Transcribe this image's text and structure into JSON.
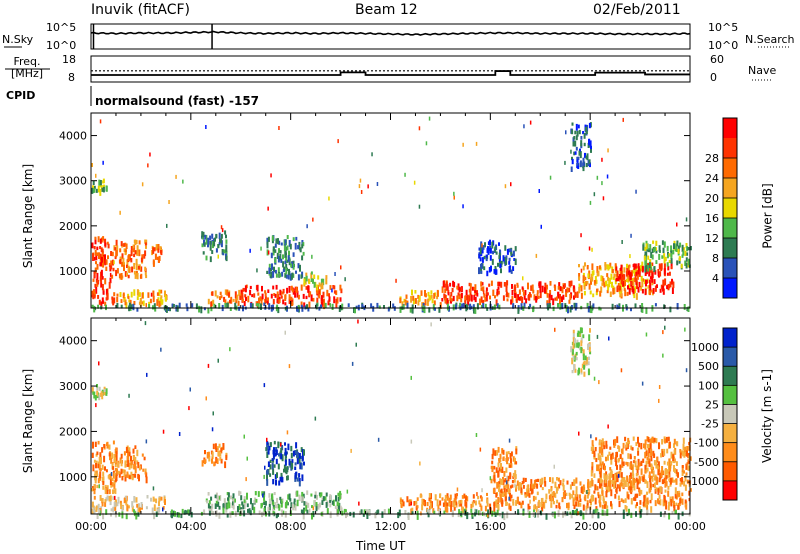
{
  "header": {
    "station": "Inuvik (fitACF)",
    "beam": "Beam 12",
    "date": "02/Feb/2011",
    "cpid_label": "CPID",
    "cpid_value": "normalsound (fast) -157"
  },
  "chart_data": [
    {
      "type": "line",
      "name": "nsky-nsearch",
      "ylabel": "N.Sky",
      "ylabel_right": "N.Search",
      "yticks_left": [
        "10^5",
        "10^0"
      ],
      "yticks_right": [
        "10^5",
        "10^0"
      ],
      "x_hours": [
        0,
        1,
        2,
        3,
        4,
        5,
        6,
        7,
        8,
        9,
        10,
        11,
        12,
        13,
        14,
        15,
        16,
        17,
        18,
        19,
        20,
        21,
        22,
        23,
        24
      ],
      "nsky_log": [
        3.2,
        3.1,
        3.2,
        3.2,
        3.3,
        3.4,
        3.2,
        3.1,
        3.2,
        3.1,
        3.2,
        3.1,
        3.0,
        2.9,
        3.0,
        3.1,
        3.2,
        3.2,
        3.1,
        3.1,
        3.1,
        3.0,
        3.0,
        3.0,
        3.1
      ],
      "spikes_hours": [
        0.1,
        4.85
      ]
    },
    {
      "type": "line",
      "name": "freq-nave",
      "ylabel": "Freq. [MHz]",
      "ylabel_right": "Nave",
      "yticks_left": [
        "18",
        "8"
      ],
      "yticks_right": [
        "60",
        "0"
      ],
      "ylim_freq": [
        8,
        18
      ],
      "freq_steps": [
        {
          "x0": 0,
          "x1": 10,
          "y": 10.7
        },
        {
          "x0": 10,
          "x1": 11,
          "y": 11.7
        },
        {
          "x0": 11,
          "x1": 14,
          "y": 10.7
        },
        {
          "x0": 14,
          "x1": 16.2,
          "y": 10.7
        },
        {
          "x0": 16.2,
          "x1": 16.8,
          "y": 12.2
        },
        {
          "x0": 16.8,
          "x1": 20.2,
          "y": 10.7
        },
        {
          "x0": 20.2,
          "x1": 22.2,
          "y": 11.6
        },
        {
          "x0": 22.2,
          "x1": 24,
          "y": 10.9
        }
      ],
      "nave_level": 12.3
    },
    {
      "type": "heatmap",
      "name": "power",
      "ylabel": "Slant Range [km]",
      "yticks": [
        "1000",
        "2000",
        "3000",
        "4000"
      ],
      "ylim": [
        180,
        4500
      ],
      "xlim": [
        0,
        24
      ],
      "colorbar": {
        "label": "Power [dB]",
        "ticks": [
          "4",
          "8",
          "12",
          "16",
          "20",
          "24",
          "28"
        ],
        "colors": [
          "#0018ff",
          "#2a52b8",
          "#2e7b52",
          "#4fb84a",
          "#e8d800",
          "#f5a520",
          "#ff6a00",
          "#ff3300",
          "#ff0000"
        ]
      },
      "regions": [
        {
          "h0": 0.0,
          "h1": 0.8,
          "r0": 700,
          "r1": 1800,
          "level": 7
        },
        {
          "h0": 0.0,
          "h1": 1.0,
          "r0": 300,
          "r1": 650,
          "level": 7
        },
        {
          "h0": 0.8,
          "h1": 2.2,
          "r0": 900,
          "r1": 1700,
          "level": 6
        },
        {
          "h0": 1.0,
          "h1": 3.0,
          "r0": 300,
          "r1": 600,
          "level": 5
        },
        {
          "h0": 2.4,
          "h1": 2.8,
          "r0": 1200,
          "r1": 1600,
          "level": 6
        },
        {
          "h0": 0.0,
          "h1": 0.6,
          "r0": 2800,
          "r1": 3050,
          "level": 3
        },
        {
          "h0": 4.4,
          "h1": 5.4,
          "r0": 1300,
          "r1": 1900,
          "level": 2
        },
        {
          "h0": 4.6,
          "h1": 6.0,
          "r0": 300,
          "r1": 600,
          "level": 6
        },
        {
          "h0": 6.0,
          "h1": 10.0,
          "r0": 300,
          "r1": 700,
          "level": 7
        },
        {
          "h0": 7.0,
          "h1": 8.5,
          "r0": 900,
          "r1": 1800,
          "level": 2
        },
        {
          "h0": 8.5,
          "h1": 9.5,
          "r0": 700,
          "r1": 1000,
          "level": 4
        },
        {
          "h0": 12.3,
          "h1": 14.0,
          "r0": 300,
          "r1": 600,
          "level": 5
        },
        {
          "h0": 14.0,
          "h1": 19.5,
          "r0": 350,
          "r1": 800,
          "level": 7
        },
        {
          "h0": 15.5,
          "h1": 17.0,
          "r0": 1000,
          "r1": 1700,
          "level": 1
        },
        {
          "h0": 19.5,
          "h1": 22.5,
          "r0": 500,
          "r1": 1200,
          "level": 5
        },
        {
          "h0": 21.0,
          "h1": 23.3,
          "r0": 600,
          "r1": 1200,
          "level": 8
        },
        {
          "h0": 22.0,
          "h1": 24.0,
          "r0": 1100,
          "r1": 1700,
          "level": 3
        },
        {
          "h0": 19.2,
          "h1": 20.0,
          "r0": 3300,
          "r1": 4300,
          "level": 1
        },
        {
          "h0": 0.0,
          "h1": 24.0,
          "r0": 190,
          "r1": 300,
          "level": 2
        }
      ]
    },
    {
      "type": "heatmap",
      "name": "velocity",
      "ylabel": "Slant Range [km]",
      "xlabel": "Time UT",
      "xticks": [
        "00:00",
        "04:00",
        "08:00",
        "12:00",
        "16:00",
        "20:00",
        "00:00"
      ],
      "yticks": [
        "1000",
        "2000",
        "3000",
        "4000"
      ],
      "ylim": [
        180,
        4500
      ],
      "xlim": [
        0,
        24
      ],
      "colorbar": {
        "label": "Velocity [m s-1]",
        "ticks": [
          "1000",
          "500",
          "100",
          "25",
          "-25",
          "-100",
          "-500",
          "-1000"
        ],
        "colors": [
          "#0022cc",
          "#2a5aa8",
          "#2e7b52",
          "#55c040",
          "#c8c8b8",
          "#f5b040",
          "#ff8c1a",
          "#ff5a00",
          "#ff0000"
        ]
      },
      "regions": [
        {
          "h0": 0.0,
          "h1": 1.0,
          "r0": 700,
          "r1": 1800,
          "level": 6
        },
        {
          "h0": 0.8,
          "h1": 2.2,
          "r0": 1000,
          "r1": 1700,
          "level": 6
        },
        {
          "h0": 0.0,
          "h1": 3.0,
          "r0": 300,
          "r1": 600,
          "level": 5
        },
        {
          "h0": 0.0,
          "h1": 0.6,
          "r0": 2800,
          "r1": 3050,
          "level": 4
        },
        {
          "h0": 4.4,
          "h1": 5.4,
          "r0": 1300,
          "r1": 1750,
          "level": 6
        },
        {
          "h0": 4.6,
          "h1": 10.0,
          "r0": 300,
          "r1": 700,
          "level": 3
        },
        {
          "h0": 7.0,
          "h1": 8.5,
          "r0": 900,
          "r1": 1800,
          "level": 1
        },
        {
          "h0": 12.3,
          "h1": 16.0,
          "r0": 300,
          "r1": 650,
          "level": 6
        },
        {
          "h0": 16.0,
          "h1": 24.0,
          "r0": 350,
          "r1": 1000,
          "level": 6
        },
        {
          "h0": 20.0,
          "h1": 24.0,
          "r0": 900,
          "r1": 1900,
          "level": 6
        },
        {
          "h0": 16.0,
          "h1": 17.0,
          "r0": 1000,
          "r1": 1700,
          "level": 6
        },
        {
          "h0": 19.2,
          "h1": 20.0,
          "r0": 3300,
          "r1": 4300,
          "level": 4
        },
        {
          "h0": 0.0,
          "h1": 24.0,
          "r0": 190,
          "r1": 300,
          "level": 3
        }
      ]
    }
  ]
}
